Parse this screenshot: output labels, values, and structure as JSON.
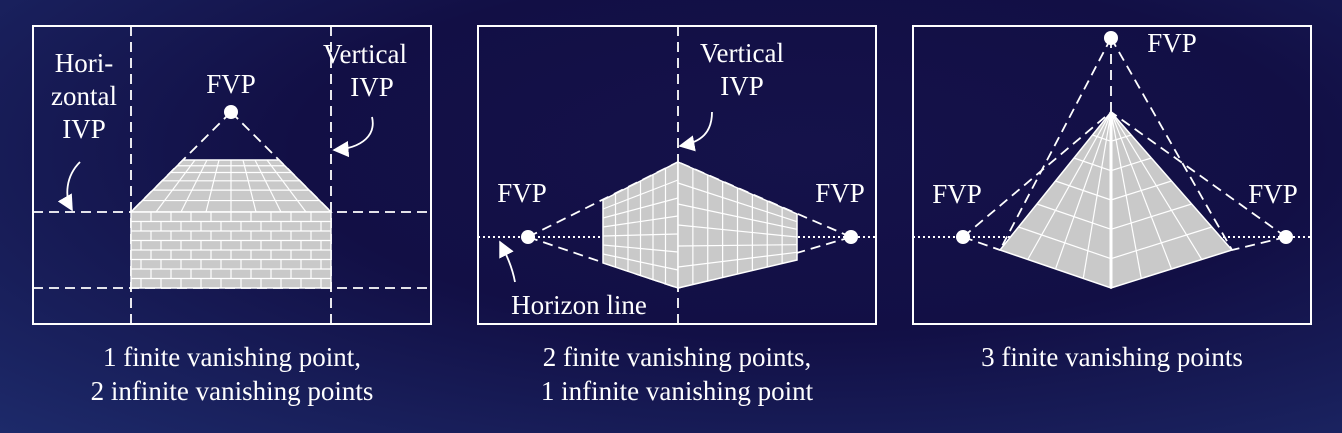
{
  "panels": [
    {
      "labels": {
        "horizontal_ivp": [
          "Hori-",
          "zontal",
          "IVP"
        ],
        "vertical_ivp": [
          "Vertical",
          "IVP"
        ],
        "fvp": "FVP"
      },
      "caption": [
        "1 finite vanishing point,",
        "2 infinite vanishing points"
      ]
    },
    {
      "labels": {
        "vertical_ivp": [
          "Vertical",
          "IVP"
        ],
        "fvp_left": "FVP",
        "fvp_right": "FVP",
        "horizon_line": "Horizon line"
      },
      "caption": [
        "2 finite vanishing points,",
        "1 infinite vanishing point"
      ]
    },
    {
      "labels": {
        "fvp_top": "FVP",
        "fvp_left": "FVP",
        "fvp_right": "FVP"
      },
      "caption": [
        "3 finite vanishing points"
      ]
    }
  ],
  "colors": {
    "background": "#141149",
    "line": "#ffffff",
    "fill": "#c9c9c9",
    "grid": "#ffffff"
  }
}
